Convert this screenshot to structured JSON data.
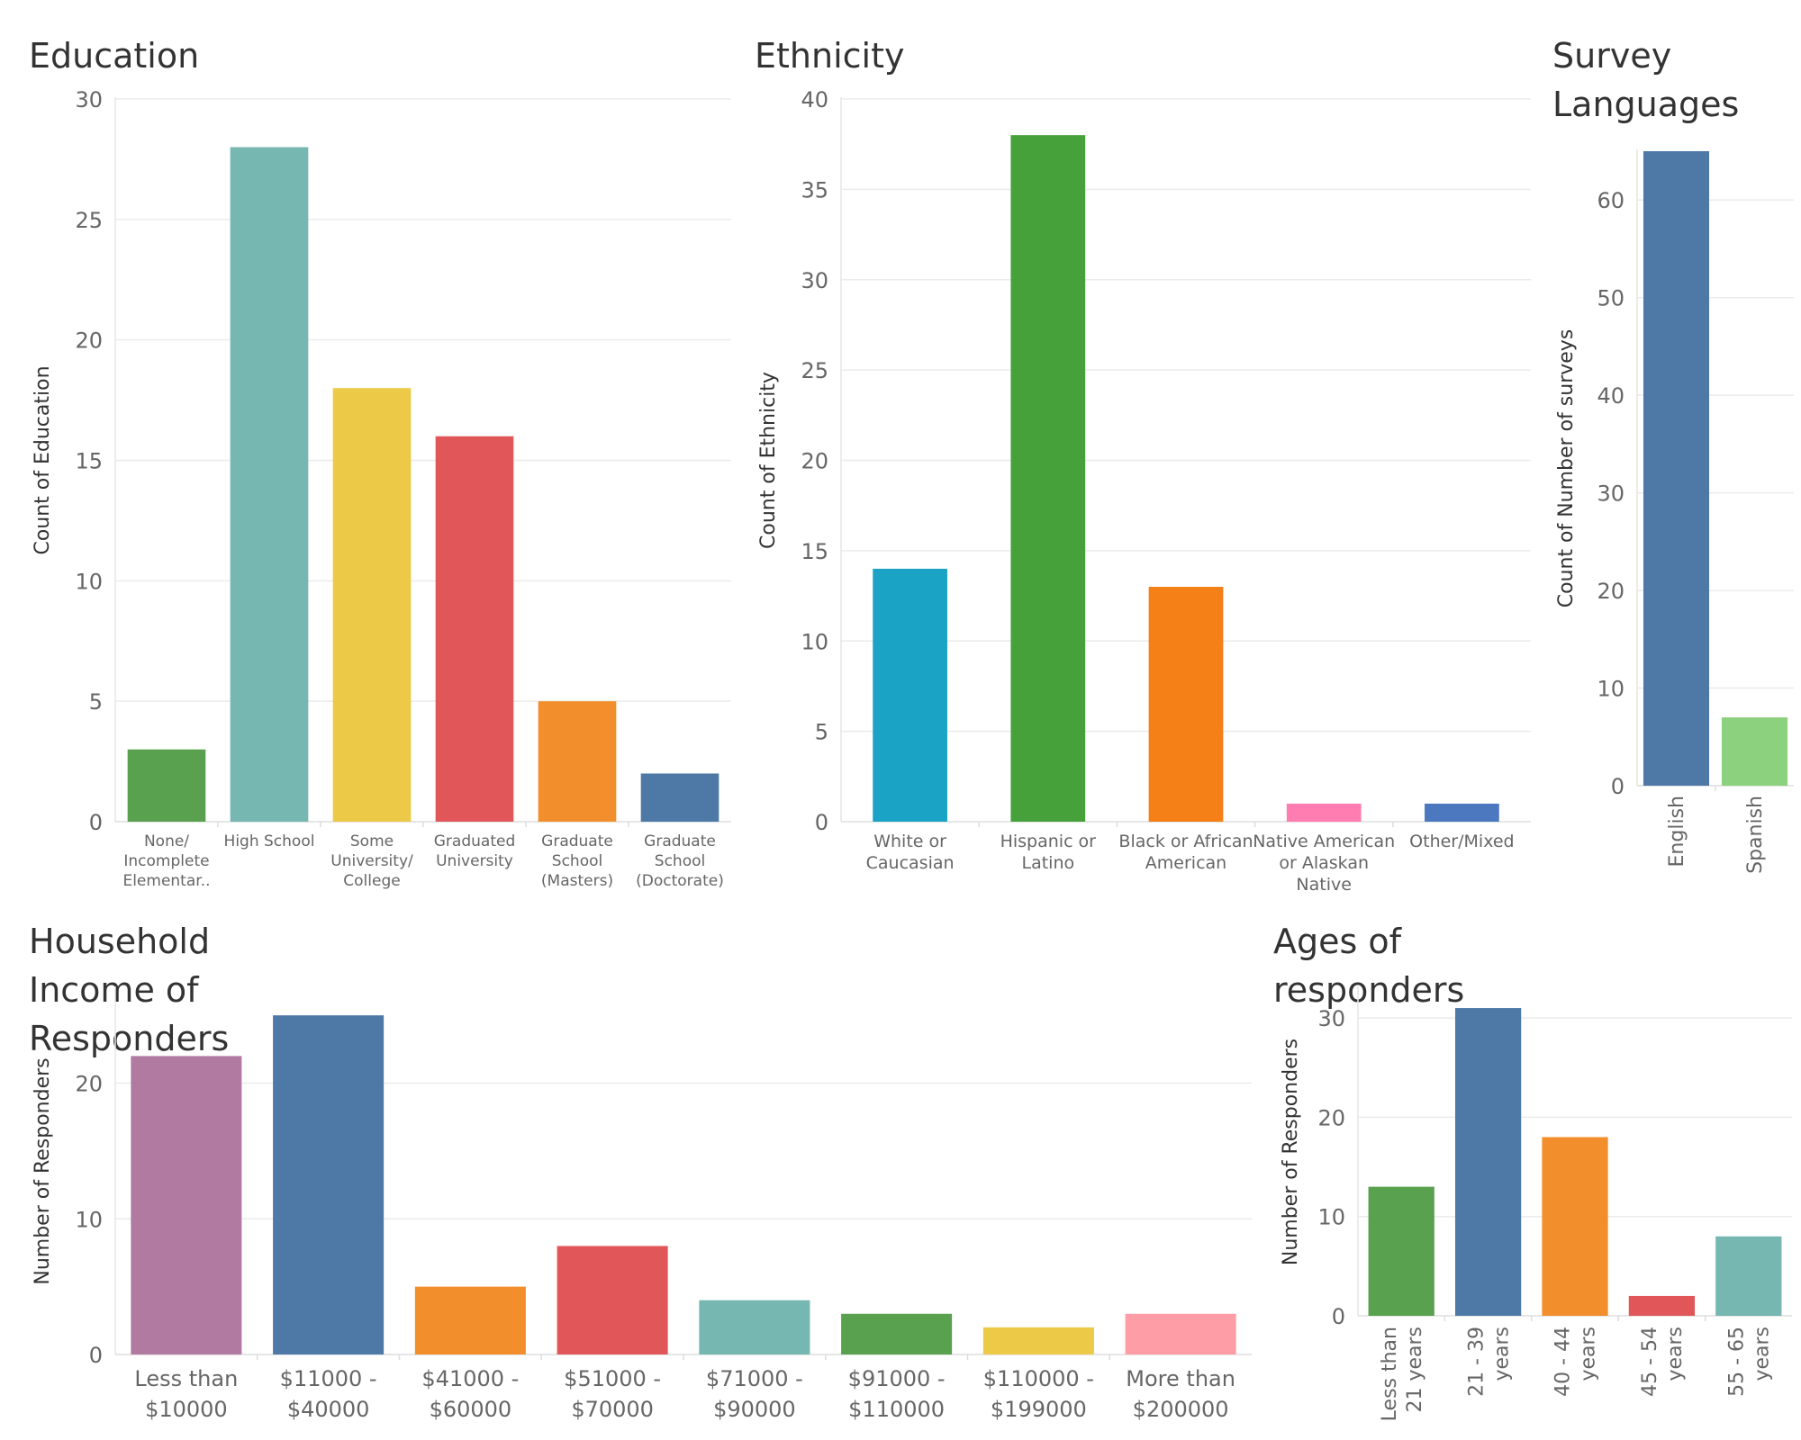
{
  "chart_data": [
    {
      "id": "education",
      "type": "bar",
      "title": "Education",
      "ylabel": "Count of Education",
      "xlabel": "",
      "categories": [
        [
          "None/",
          "Incomplete",
          "Elementar.."
        ],
        [
          "High School"
        ],
        [
          "Some",
          "University/",
          "College"
        ],
        [
          "Graduated",
          "University"
        ],
        [
          "Graduate",
          "School",
          "(Masters)"
        ],
        [
          "Graduate",
          "School",
          "(Doctorate)"
        ]
      ],
      "values": [
        3,
        28,
        18,
        16,
        5,
        2
      ],
      "colors": [
        "#59A14F",
        "#76B7B2",
        "#EDC948",
        "#E15759",
        "#F28E2B",
        "#4E79A7"
      ],
      "yticks": [
        0,
        5,
        10,
        15,
        20,
        25,
        30
      ],
      "ylim": [
        0,
        30
      ],
      "grid": true,
      "xlabel_orientation": "horizontal"
    },
    {
      "id": "ethnicity",
      "type": "bar",
      "title": "Ethnicity",
      "ylabel": "Count of Ethnicity",
      "xlabel": "",
      "categories": [
        [
          "White or",
          "Caucasian"
        ],
        [
          "Hispanic or",
          "Latino"
        ],
        [
          "Black or African",
          "American"
        ],
        [
          "Native American",
          "or Alaskan",
          "Native"
        ],
        [
          "Other/Mixed"
        ]
      ],
      "values": [
        14,
        38,
        13,
        1,
        1
      ],
      "colors": [
        "#1BA3C6",
        "#46A13B",
        "#F48017",
        "#FF7DB1",
        "#4C78C0"
      ],
      "yticks": [
        0,
        5,
        10,
        15,
        20,
        25,
        30,
        35,
        40
      ],
      "ylim": [
        0,
        40
      ],
      "grid": true,
      "xlabel_orientation": "horizontal"
    },
    {
      "id": "languages",
      "type": "bar",
      "title": "Survey\nLanguages",
      "ylabel": "Count of Number of surveys",
      "xlabel": "",
      "categories": [
        [
          "English"
        ],
        [
          "Spanish"
        ]
      ],
      "values": [
        65,
        7
      ],
      "colors": [
        "#4E79A7",
        "#8CD17D"
      ],
      "yticks": [
        0,
        10,
        20,
        30,
        40,
        50,
        60
      ],
      "ylim": [
        0,
        65
      ],
      "grid": true,
      "xlabel_orientation": "vertical"
    },
    {
      "id": "income",
      "type": "bar",
      "title": "Household Income of Responders",
      "ylabel": "Number of Responders",
      "xlabel": "",
      "categories": [
        [
          "Less than",
          "$10000"
        ],
        [
          "$11000 -",
          "$40000"
        ],
        [
          "$41000 -",
          "$60000"
        ],
        [
          "$51000 -",
          "$70000"
        ],
        [
          "$71000 -",
          "$90000"
        ],
        [
          "$91000 -",
          "$110000"
        ],
        [
          "$110000 -",
          "$199000"
        ],
        [
          "More than",
          "$200000"
        ]
      ],
      "values": [
        22,
        25,
        5,
        8,
        4,
        3,
        2,
        3
      ],
      "colors": [
        "#B07AA1",
        "#4E79A7",
        "#F28E2B",
        "#E15759",
        "#76B7B2",
        "#59A14F",
        "#EDC948",
        "#FF9DA7"
      ],
      "yticks": [
        0,
        10,
        20
      ],
      "ylim": [
        0,
        27
      ],
      "grid": true,
      "xlabel_orientation": "horizontal"
    },
    {
      "id": "ages",
      "type": "bar",
      "title": "Ages of responders",
      "ylabel": "Number of Responders",
      "xlabel": "",
      "categories": [
        [
          "Less than",
          "21 years"
        ],
        [
          "21 - 39",
          "years"
        ],
        [
          "40 - 44",
          "years"
        ],
        [
          "45 - 54",
          "years"
        ],
        [
          "55 - 65",
          "years"
        ]
      ],
      "values": [
        13,
        31,
        18,
        2,
        8
      ],
      "colors": [
        "#59A14F",
        "#4E79A7",
        "#F28E2B",
        "#E15759",
        "#76B7B2"
      ],
      "yticks": [
        0,
        10,
        20,
        30
      ],
      "ylim": [
        0,
        33
      ],
      "grid": true,
      "xlabel_orientation": "vertical"
    }
  ]
}
